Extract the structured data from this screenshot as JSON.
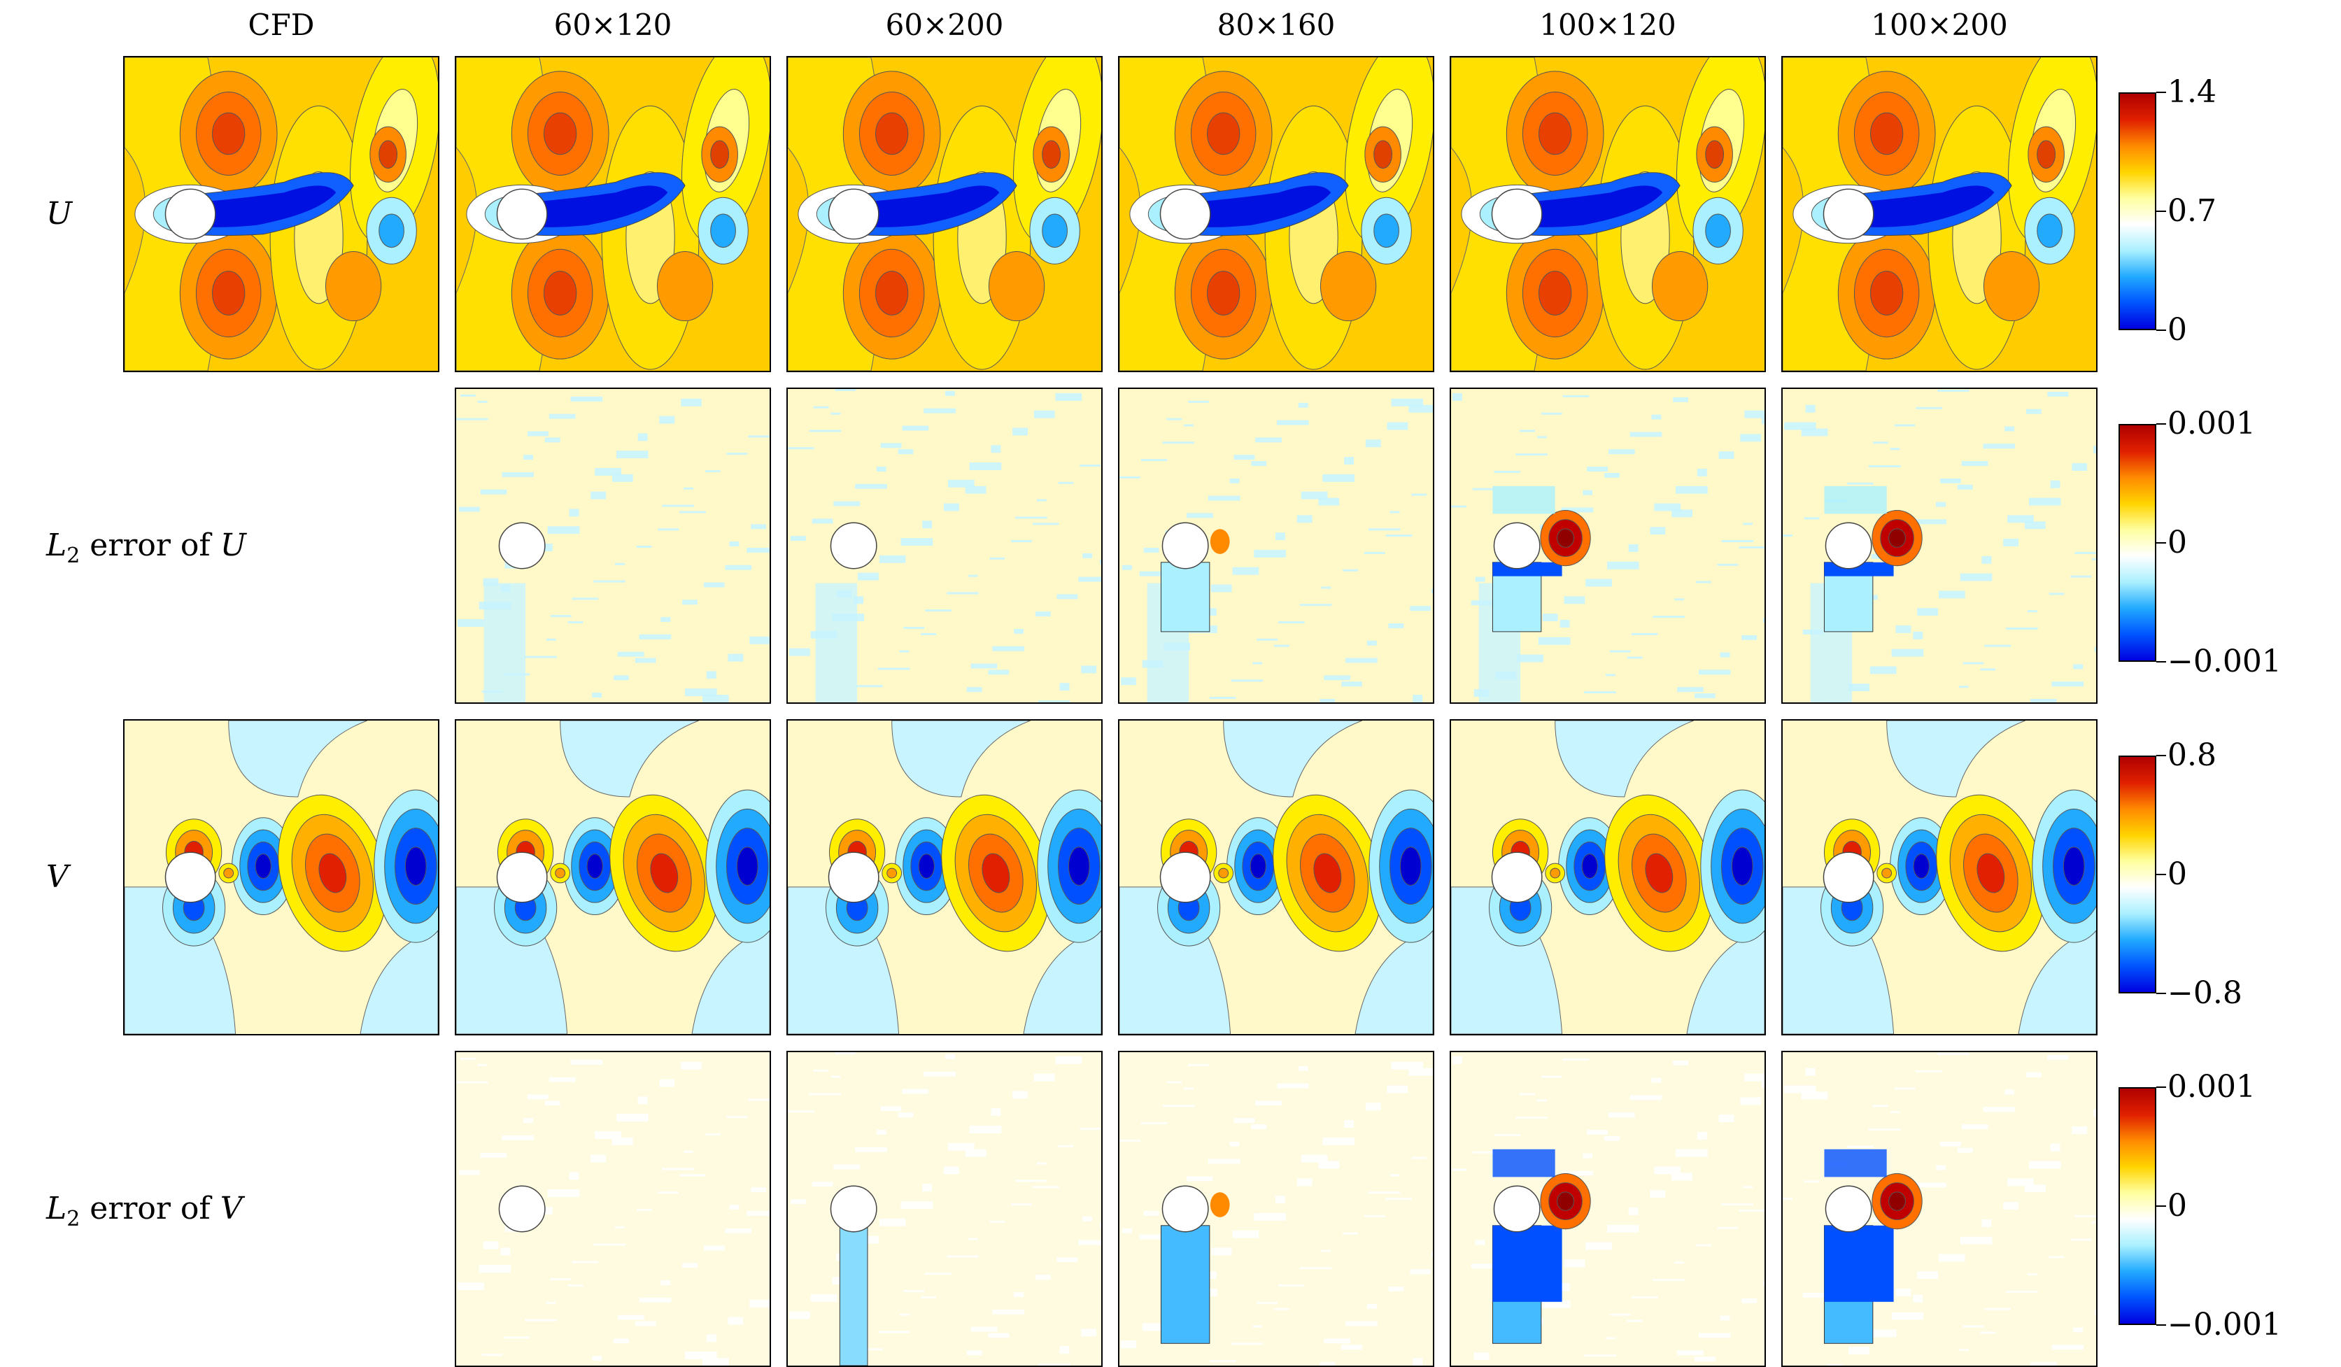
{
  "columns": [
    "CFD",
    "60×120",
    "60×200",
    "80×160",
    "100×120",
    "100×200"
  ],
  "rows": [
    {
      "label": "U",
      "italic": true,
      "kind": "u",
      "colorbar": {
        "max": "1.4",
        "mid": "0.7",
        "min": "0"
      }
    },
    {
      "label_prefix": "L",
      "label_sub": "2",
      "label_text": " error of ",
      "label_var": "U",
      "kind": "err",
      "colorbar": {
        "max": "0.001",
        "mid": "0",
        "min": "−0.001"
      }
    },
    {
      "label": "V",
      "italic": true,
      "kind": "v",
      "colorbar": {
        "max": "0.8",
        "mid": "0",
        "min": "−0.8"
      }
    },
    {
      "label_prefix": "L",
      "label_sub": "2",
      "label_text": " error of ",
      "label_var": "V",
      "kind": "errv",
      "colorbar": {
        "max": "0.001",
        "mid": "0",
        "min": "−0.001"
      }
    }
  ],
  "colormap": [
    "#0000e0",
    "#0055ff",
    "#22aaff",
    "#aaf0ff",
    "#ffffff",
    "#ffffa0",
    "#ffd400",
    "#ff8a00",
    "#e02000",
    "#b00000"
  ],
  "colors": {
    "u_background": "#ffcc00",
    "err_background": "#fff8c8",
    "err_alt": "#c8f4ff",
    "v_background": "#fff8c8",
    "v_alt": "#c8f4ff",
    "cylinder": "#ffffff"
  }
}
